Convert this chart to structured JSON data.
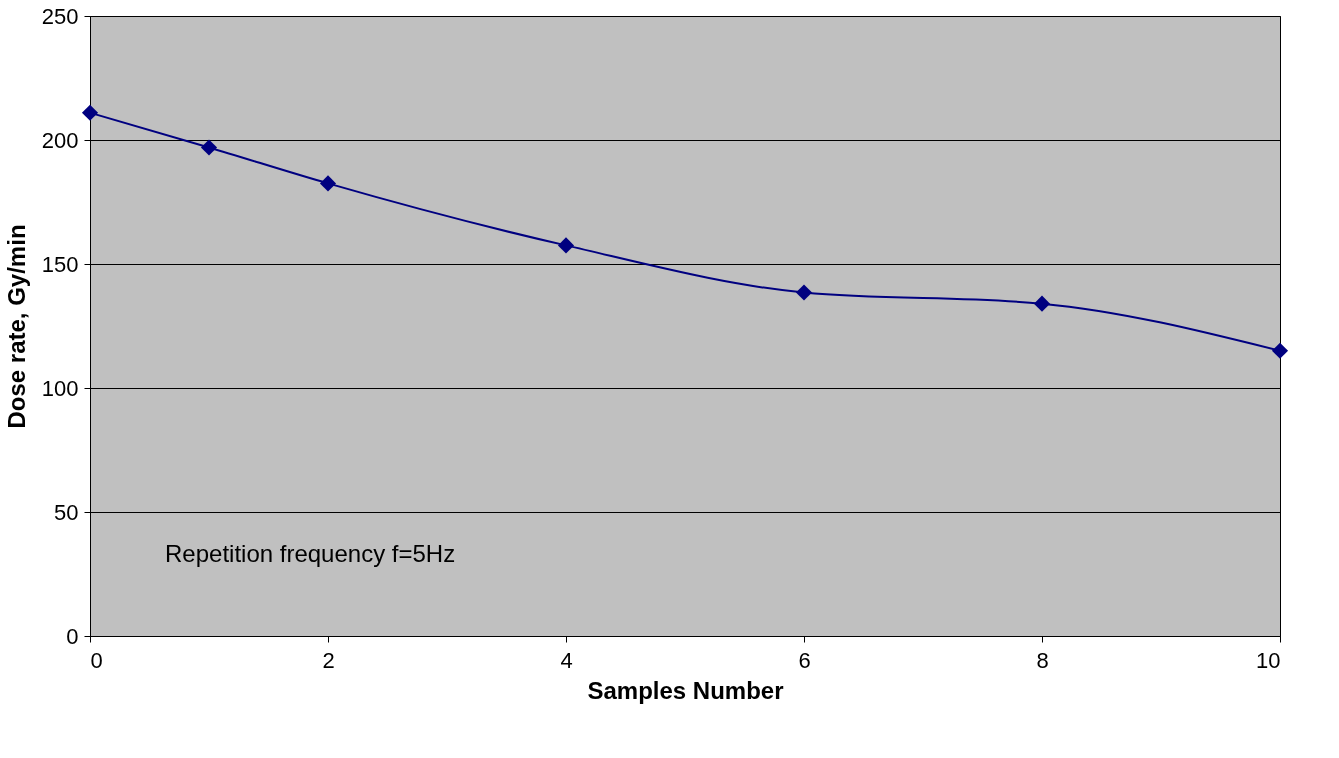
{
  "chart_data": {
    "type": "line",
    "xlabel": "Samples Number",
    "ylabel": "Dose rate, Gy/min",
    "x": [
      0,
      1,
      2,
      4,
      6,
      8,
      10
    ],
    "series": [
      {
        "color": "#000080",
        "values": [
          211,
          197,
          182.5,
          157.5,
          138.5,
          134,
          115
        ]
      }
    ],
    "xlim": [
      0,
      10
    ],
    "xticks": [
      0,
      2,
      4,
      6,
      8,
      10
    ],
    "ylim": [
      0,
      250
    ],
    "yticks": [
      0,
      50,
      100,
      150,
      200,
      250
    ],
    "grid": "y",
    "marker": "diamond",
    "line_style": "solid",
    "annotations": [
      "Repetition frequency f=5Hz"
    ]
  }
}
